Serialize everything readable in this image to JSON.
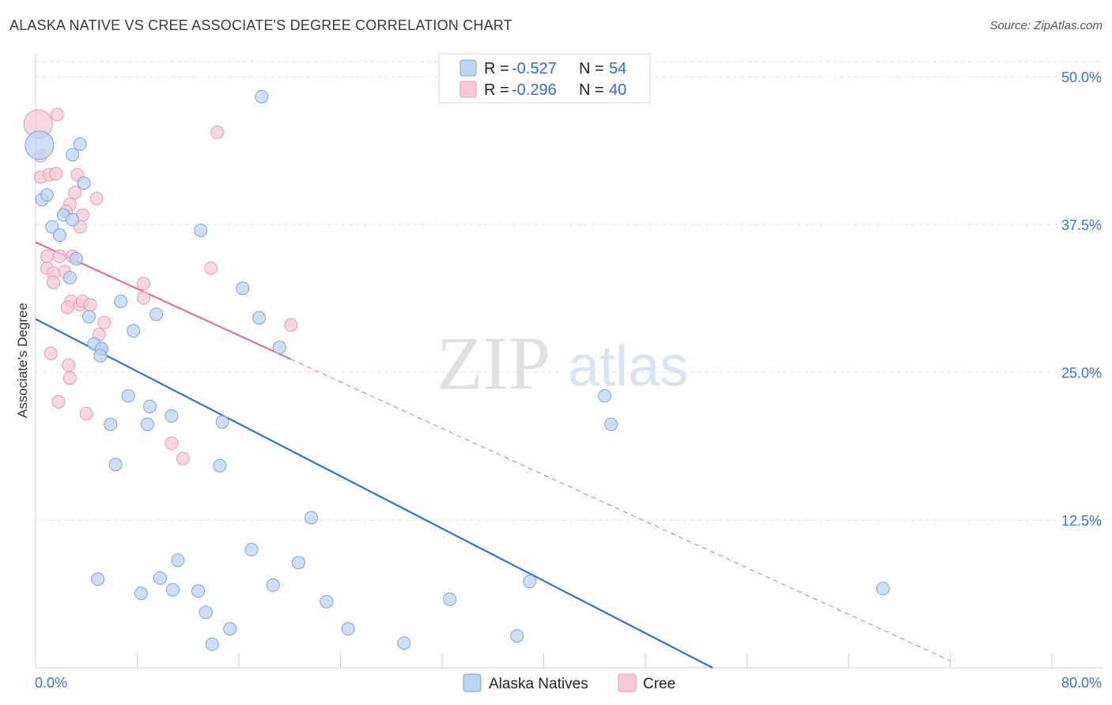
{
  "title": "ALASKA NATIVE VS CREE ASSOCIATE'S DEGREE CORRELATION CHART",
  "source": "Source: ZipAtlas.com",
  "watermark": {
    "zip": "ZIP",
    "atlas": "atlas"
  },
  "colors": {
    "blue_fill": "#bcd3f2",
    "blue_stroke": "#7aa6e0",
    "blue_line": "#2f72d0",
    "pink_fill": "#f8c8d6",
    "pink_stroke": "#e89ab2",
    "pink_line": "#e0709a",
    "grid": "#e4e4e4",
    "axis_text": "#3d76c8"
  },
  "legend": {
    "rows": [
      {
        "r_label": "R = ",
        "r_value": "-0.527",
        "n_label": "N = ",
        "n_value": "54"
      },
      {
        "r_label": "R = ",
        "r_value": "-0.296",
        "n_label": "N = ",
        "n_value": "40"
      }
    ]
  },
  "bottom_legend": [
    "Alaska Natives",
    "Cree"
  ],
  "chart_data": {
    "type": "scatter",
    "title": "ALASKA NATIVE VS CREE ASSOCIATE'S DEGREE CORRELATION CHART",
    "xlabel": "",
    "ylabel": "Associate's Degree",
    "xlim": [
      0,
      80
    ],
    "ylim": [
      0,
      50
    ],
    "x_tick_labels": [
      "0.0%",
      "80.0%"
    ],
    "y_ticks": [
      12.5,
      25.0,
      37.5,
      50.0
    ],
    "y_tick_labels": [
      "12.5%",
      "25.0%",
      "37.5%",
      "50.0%"
    ],
    "series": [
      {
        "name": "Alaska Natives",
        "R": -0.527,
        "N": 54,
        "trend": {
          "x0": 0,
          "y0": 29.5,
          "x1": 53.3,
          "y1": 0
        },
        "points": [
          [
            0.3,
            44.2
          ],
          [
            17.8,
            48.3
          ],
          [
            3.5,
            44.3
          ],
          [
            3.8,
            41.0
          ],
          [
            0.5,
            39.6
          ],
          [
            0.9,
            40.0
          ],
          [
            2.2,
            38.3
          ],
          [
            1.3,
            37.3
          ],
          [
            2.9,
            37.9
          ],
          [
            13.0,
            37.0
          ],
          [
            1.9,
            36.6
          ],
          [
            3.2,
            34.6
          ],
          [
            2.7,
            33.0
          ],
          [
            16.3,
            32.1
          ],
          [
            6.7,
            31.0
          ],
          [
            9.5,
            29.9
          ],
          [
            17.6,
            29.6
          ],
          [
            4.2,
            29.7
          ],
          [
            7.7,
            28.5
          ],
          [
            4.6,
            27.4
          ],
          [
            19.2,
            27.1
          ],
          [
            5.2,
            27.0
          ],
          [
            5.1,
            26.4
          ],
          [
            7.3,
            23.0
          ],
          [
            44.8,
            23.0
          ],
          [
            9.0,
            22.1
          ],
          [
            10.7,
            21.3
          ],
          [
            5.9,
            20.6
          ],
          [
            8.8,
            20.6
          ],
          [
            14.7,
            20.8
          ],
          [
            45.3,
            20.6
          ],
          [
            6.3,
            17.2
          ],
          [
            14.5,
            17.1
          ],
          [
            21.7,
            12.7
          ],
          [
            17.0,
            10.0
          ],
          [
            11.2,
            9.1
          ],
          [
            20.7,
            8.9
          ],
          [
            4.9,
            7.5
          ],
          [
            9.8,
            7.6
          ],
          [
            38.9,
            7.3
          ],
          [
            18.7,
            7.0
          ],
          [
            8.3,
            6.3
          ],
          [
            10.8,
            6.6
          ],
          [
            12.8,
            6.5
          ],
          [
            22.9,
            5.6
          ],
          [
            32.6,
            5.8
          ],
          [
            66.7,
            6.7
          ],
          [
            13.4,
            4.7
          ],
          [
            15.3,
            3.3
          ],
          [
            24.6,
            3.3
          ],
          [
            29.0,
            2.1
          ],
          [
            37.9,
            2.7
          ],
          [
            13.9,
            2.0
          ],
          [
            2.9,
            43.4
          ]
        ]
      },
      {
        "name": "Cree",
        "R": -0.296,
        "N": 40,
        "trend": {
          "x0": 0,
          "y0": 36.0,
          "x1": 20.1,
          "y1": 26.1,
          "dash_x1": 72.0,
          "dash_y1": 0.6
        },
        "points": [
          [
            0.2,
            46.0
          ],
          [
            1.7,
            46.8
          ],
          [
            14.3,
            45.3
          ],
          [
            0.4,
            43.3
          ],
          [
            0.4,
            41.5
          ],
          [
            1.1,
            41.7
          ],
          [
            1.6,
            41.8
          ],
          [
            3.3,
            41.7
          ],
          [
            3.1,
            40.2
          ],
          [
            4.8,
            39.7
          ],
          [
            2.7,
            39.2
          ],
          [
            2.4,
            38.6
          ],
          [
            3.7,
            38.3
          ],
          [
            3.5,
            37.3
          ],
          [
            0.9,
            33.8
          ],
          [
            0.9,
            34.8
          ],
          [
            1.9,
            34.8
          ],
          [
            2.9,
            34.8
          ],
          [
            2.3,
            33.5
          ],
          [
            1.4,
            33.4
          ],
          [
            13.8,
            33.8
          ],
          [
            1.4,
            32.6
          ],
          [
            8.5,
            32.5
          ],
          [
            8.5,
            31.3
          ],
          [
            2.8,
            31.0
          ],
          [
            3.5,
            30.7
          ],
          [
            3.7,
            31.0
          ],
          [
            4.3,
            30.7
          ],
          [
            20.1,
            29.0
          ],
          [
            5.4,
            29.2
          ],
          [
            5.0,
            28.2
          ],
          [
            5.2,
            27.0
          ],
          [
            1.2,
            26.6
          ],
          [
            2.6,
            25.6
          ],
          [
            2.7,
            24.5
          ],
          [
            1.8,
            22.5
          ],
          [
            4.0,
            21.5
          ],
          [
            10.7,
            19.0
          ],
          [
            11.6,
            17.7
          ],
          [
            2.5,
            30.5
          ]
        ]
      }
    ]
  }
}
